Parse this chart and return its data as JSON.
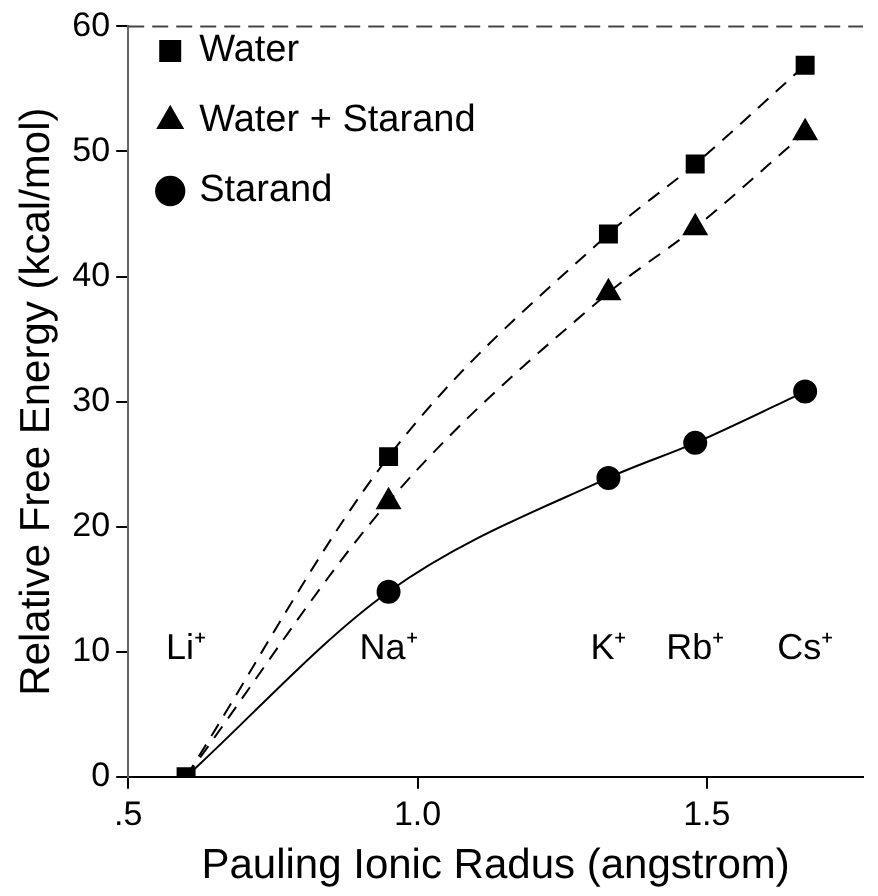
{
  "chart_data": {
    "type": "line",
    "xlabel": "Pauling Ionic Radus (angstrom)",
    "ylabel": "Relative Free Energy (kcal/mol)",
    "x": [
      0.6,
      0.95,
      1.33,
      1.48,
      1.67
    ],
    "series": [
      {
        "name": "Water",
        "color": "#000000",
        "marker": "square",
        "line_style": "dashed",
        "values": [
          0,
          25.6,
          43.4,
          49.0,
          56.9
        ]
      },
      {
        "name": "Water + Starand",
        "color": "#000000",
        "marker": "triangle",
        "line_style": "dashed",
        "values": [
          0,
          22.0,
          38.7,
          43.9,
          51.5
        ]
      },
      {
        "name": "Starand",
        "color": "#000000",
        "marker": "circle",
        "line_style": "solid",
        "values": [
          0,
          14.8,
          23.9,
          26.7,
          30.8
        ]
      }
    ],
    "xlim": [
      0.5,
      1.77
    ],
    "xticks": [
      {
        "value": 0.5,
        "label": ".5"
      },
      {
        "value": 1.0,
        "label": "1.0"
      },
      {
        "value": 1.5,
        "label": "1.5"
      }
    ],
    "ylim": [
      0,
      60
    ],
    "yticks": [
      0,
      10,
      20,
      30,
      40,
      50,
      60
    ],
    "grid": false,
    "legend": "top left",
    "annotations": [
      "Li⁺",
      "Na⁺",
      "K⁺",
      "Rb⁺",
      "Cs⁺"
    ]
  }
}
